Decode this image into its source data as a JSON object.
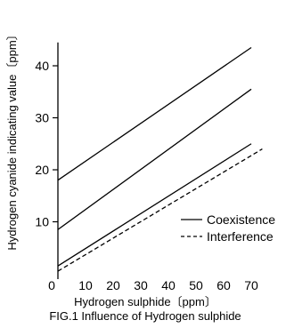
{
  "chart_data": {
    "type": "line",
    "title": "FIG.1 Influence of Hydrogen sulphide",
    "xlabel": "Hydrogen sulphide〔ppm〕",
    "ylabel": "Hydrogen cyanide indicating value〔ppm〕",
    "xlim": [
      0,
      75
    ],
    "ylim": [
      0,
      45
    ],
    "x_ticks": [
      0,
      10,
      20,
      30,
      40,
      50,
      60,
      70
    ],
    "y_ticks": [
      10,
      20,
      30,
      40
    ],
    "legend_position": "bottom-right",
    "series": [
      {
        "name": "Coexistence",
        "style": "solid",
        "x": [
          0,
          70
        ],
        "y": [
          18,
          43.5
        ]
      },
      {
        "name": "Coexistence",
        "style": "solid",
        "x": [
          0,
          70
        ],
        "y": [
          8.5,
          35.5
        ]
      },
      {
        "name": "Coexistence",
        "style": "solid",
        "x": [
          0,
          70
        ],
        "y": [
          1.5,
          25
        ]
      },
      {
        "name": "Interference",
        "style": "dashed",
        "x": [
          0,
          74
        ],
        "y": [
          0.5,
          24
        ]
      }
    ],
    "legend": [
      {
        "label": "Coexistence",
        "style": "solid"
      },
      {
        "label": "Interference",
        "style": "dashed"
      }
    ]
  }
}
